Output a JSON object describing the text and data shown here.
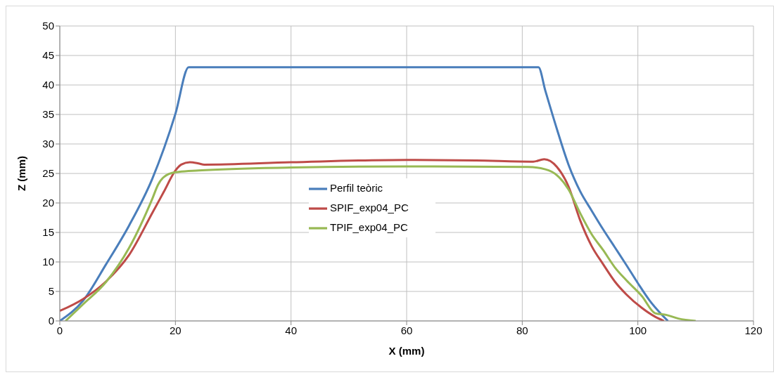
{
  "chart_data": {
    "type": "line",
    "xlabel": "X (mm)",
    "ylabel": "Z (mm)",
    "xlim": [
      0,
      120
    ],
    "xticks": [
      0,
      20,
      40,
      60,
      80,
      100,
      120
    ],
    "ylim": [
      0,
      50
    ],
    "yticks": [
      0,
      5,
      10,
      15,
      20,
      25,
      30,
      35,
      40,
      45,
      50
    ],
    "grid": true,
    "legend": "center",
    "marker": "none",
    "line_style": "solid",
    "series": [
      {
        "name": "Perfil teòric",
        "color": "#4a7ebb",
        "x": [
          0,
          4,
          8,
          12,
          16,
          20,
          22.3,
          82.8,
          84,
          86,
          88,
          90,
          92,
          94,
          96,
          98,
          100,
          102,
          104,
          105.2
        ],
        "values": [
          0,
          3.4,
          9.6,
          16.2,
          24.1,
          35.1,
          43,
          43,
          39,
          32.5,
          26.5,
          22,
          18.7,
          15.5,
          12.5,
          9.5,
          6.4,
          3.5,
          1.2,
          0
        ]
      },
      {
        "name": "SPIF_exp04_PC",
        "color": "#be4b48",
        "x": [
          0,
          4,
          8,
          12,
          16,
          18,
          20,
          21,
          22.5,
          24,
          25,
          40,
          60,
          72,
          81.9,
          83.8,
          86,
          88,
          90,
          92,
          94,
          96,
          98,
          100.7,
          103,
          104.5
        ],
        "values": [
          1.7,
          3.7,
          6.7,
          11.2,
          18.3,
          21.9,
          25.5,
          26.5,
          26.9,
          26.7,
          26.5,
          26.9,
          27.3,
          27.2,
          27,
          27.4,
          26.1,
          22.8,
          17.1,
          12.7,
          9.6,
          6.7,
          4.5,
          2.2,
          0.7,
          0
        ]
      },
      {
        "name": "TPIF_exp04_PC",
        "color": "#98b954",
        "x": [
          1,
          4,
          8,
          12,
          16,
          17,
          18,
          20,
          24,
          40,
          60,
          81,
          84,
          86,
          88,
          90,
          92,
          94,
          96,
          98,
          100.7,
          103,
          105,
          107,
          110
        ],
        "values": [
          0,
          2.8,
          6.6,
          12.4,
          20.7,
          23.1,
          24.4,
          25.2,
          25.5,
          26,
          26.2,
          26.1,
          25.7,
          24.7,
          22.3,
          18.3,
          14.7,
          12,
          9.1,
          6.9,
          4.2,
          1.3,
          1,
          0.4,
          0
        ]
      }
    ]
  }
}
